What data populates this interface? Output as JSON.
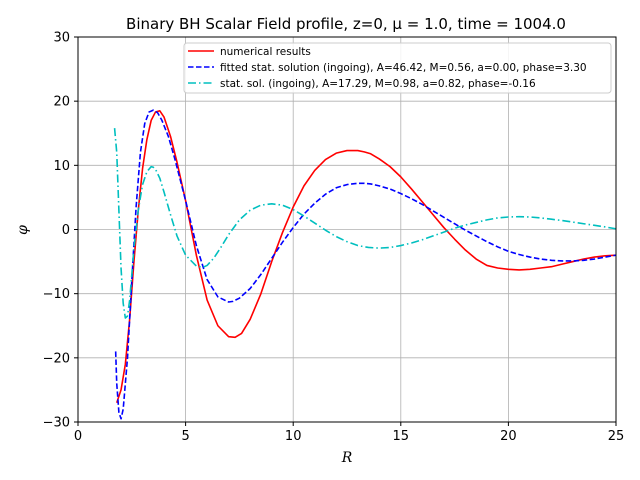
{
  "chart_data": {
    "type": "line",
    "title": "Binary BH Scalar Field profile, z=0, μ = 1.0, time = 1004.0",
    "xlabel": "R",
    "ylabel": "φ",
    "xlim": [
      0,
      25
    ],
    "ylim": [
      -30,
      30
    ],
    "xticks": [
      0,
      5,
      10,
      15,
      20,
      25
    ],
    "yticks": [
      -30,
      -20,
      -10,
      0,
      10,
      20,
      30
    ],
    "grid": true,
    "legend_position": "upper-right",
    "series": [
      {
        "name": "numerical results",
        "color": "#ff0000",
        "dash": "solid",
        "x": [
          1.8,
          2.0,
          2.2,
          2.4,
          2.6,
          2.8,
          3.0,
          3.2,
          3.4,
          3.6,
          3.8,
          4.0,
          4.3,
          4.6,
          5.0,
          5.5,
          6.0,
          6.5,
          7.0,
          7.3,
          7.6,
          8.0,
          8.5,
          9.0,
          9.5,
          10.0,
          10.5,
          11.0,
          11.5,
          12.0,
          12.5,
          13.0,
          13.3,
          13.6,
          14.0,
          14.5,
          15.0,
          15.5,
          16.0,
          16.5,
          17.0,
          17.5,
          18.0,
          18.5,
          19.0,
          19.5,
          20.0,
          20.5,
          21.0,
          21.5,
          22.0,
          22.5,
          23.0,
          23.5,
          24.0,
          24.5,
          25.0
        ],
        "y": [
          -27.0,
          -25.0,
          -21.0,
          -14.0,
          -5.0,
          3.0,
          9.5,
          14.0,
          17.0,
          18.3,
          18.5,
          17.5,
          14.5,
          10.5,
          4.5,
          -4.0,
          -11.0,
          -15.0,
          -16.7,
          -16.8,
          -16.2,
          -14.0,
          -10.0,
          -5.0,
          -0.5,
          3.5,
          6.8,
          9.2,
          10.9,
          11.9,
          12.3,
          12.3,
          12.1,
          11.8,
          11.0,
          9.8,
          8.2,
          6.3,
          4.3,
          2.3,
          0.3,
          -1.5,
          -3.2,
          -4.6,
          -5.6,
          -6.0,
          -6.2,
          -6.3,
          -6.2,
          -6.0,
          -5.8,
          -5.4,
          -5.0,
          -4.6,
          -4.3,
          -4.1,
          -4.0
        ]
      },
      {
        "name": "fitted stat. solution (ingoing), A=46.42, M=0.56, a=0.00, phase=3.30",
        "color": "#0000ff",
        "dash": "dashed",
        "x": [
          1.75,
          1.8,
          1.9,
          2.0,
          2.1,
          2.3,
          2.5,
          2.7,
          2.9,
          3.1,
          3.3,
          3.5,
          3.7,
          3.9,
          4.2,
          4.5,
          5.0,
          5.5,
          6.0,
          6.5,
          7.0,
          7.2,
          7.5,
          8.0,
          8.5,
          9.0,
          9.5,
          10.0,
          10.5,
          11.0,
          11.5,
          12.0,
          12.5,
          13.0,
          13.3,
          13.6,
          14.0,
          14.5,
          15.0,
          15.5,
          16.0,
          16.5,
          17.0,
          17.5,
          18.0,
          18.5,
          19.0,
          19.5,
          20.0,
          20.5,
          21.0,
          21.5,
          22.0,
          22.5,
          23.0,
          23.5,
          24.0,
          24.5,
          25.0
        ],
        "y": [
          -19.0,
          -24.0,
          -28.5,
          -29.5,
          -28.0,
          -20.0,
          -8.0,
          3.5,
          12.0,
          16.5,
          18.3,
          18.6,
          18.2,
          17.0,
          14.5,
          11.0,
          4.5,
          -2.5,
          -7.8,
          -10.5,
          -11.3,
          -11.2,
          -10.7,
          -9.2,
          -7.0,
          -4.5,
          -2.0,
          0.3,
          2.4,
          4.1,
          5.5,
          6.5,
          7.0,
          7.2,
          7.2,
          7.1,
          6.8,
          6.3,
          5.6,
          4.8,
          3.9,
          2.9,
          1.9,
          0.9,
          -0.1,
          -1.0,
          -1.9,
          -2.7,
          -3.4,
          -3.9,
          -4.3,
          -4.6,
          -4.8,
          -4.9,
          -4.9,
          -4.8,
          -4.6,
          -4.3,
          -4.0
        ]
      },
      {
        "name": "stat. sol. (ingoing), A=17.29, M=0.98, a=0.82, phase=-0.16",
        "color": "#00bfbf",
        "dash": "dashdot",
        "x": [
          1.7,
          1.8,
          1.9,
          2.0,
          2.1,
          2.2,
          2.3,
          2.4,
          2.5,
          2.6,
          2.8,
          3.0,
          3.2,
          3.4,
          3.5,
          3.6,
          3.8,
          4.0,
          4.3,
          4.6,
          5.0,
          5.5,
          5.8,
          6.0,
          6.3,
          6.6,
          7.0,
          7.5,
          8.0,
          8.5,
          9.0,
          9.5,
          10.0,
          10.5,
          11.0,
          11.5,
          12.0,
          12.5,
          13.0,
          13.5,
          14.0,
          14.5,
          15.0,
          15.5,
          16.0,
          16.5,
          17.0,
          17.5,
          18.0,
          18.5,
          19.0,
          19.5,
          20.0,
          20.5,
          21.0,
          21.5,
          22.0,
          22.5,
          23.0,
          23.5,
          24.0,
          24.5,
          25.0
        ],
        "y": [
          15.8,
          12.0,
          3.0,
          -6.0,
          -11.5,
          -13.8,
          -13.5,
          -11.0,
          -7.0,
          -3.0,
          3.0,
          7.0,
          9.0,
          9.8,
          9.7,
          9.4,
          8.0,
          5.8,
          2.3,
          -1.0,
          -4.0,
          -5.7,
          -5.9,
          -5.6,
          -4.5,
          -3.0,
          -0.8,
          1.5,
          3.0,
          3.8,
          4.0,
          3.8,
          3.1,
          2.1,
          1.0,
          -0.1,
          -1.1,
          -1.9,
          -2.5,
          -2.8,
          -2.9,
          -2.8,
          -2.5,
          -2.1,
          -1.6,
          -1.0,
          -0.4,
          0.2,
          0.7,
          1.1,
          1.5,
          1.8,
          1.95,
          2.0,
          1.95,
          1.8,
          1.6,
          1.4,
          1.15,
          0.9,
          0.65,
          0.4,
          0.1
        ]
      }
    ]
  }
}
